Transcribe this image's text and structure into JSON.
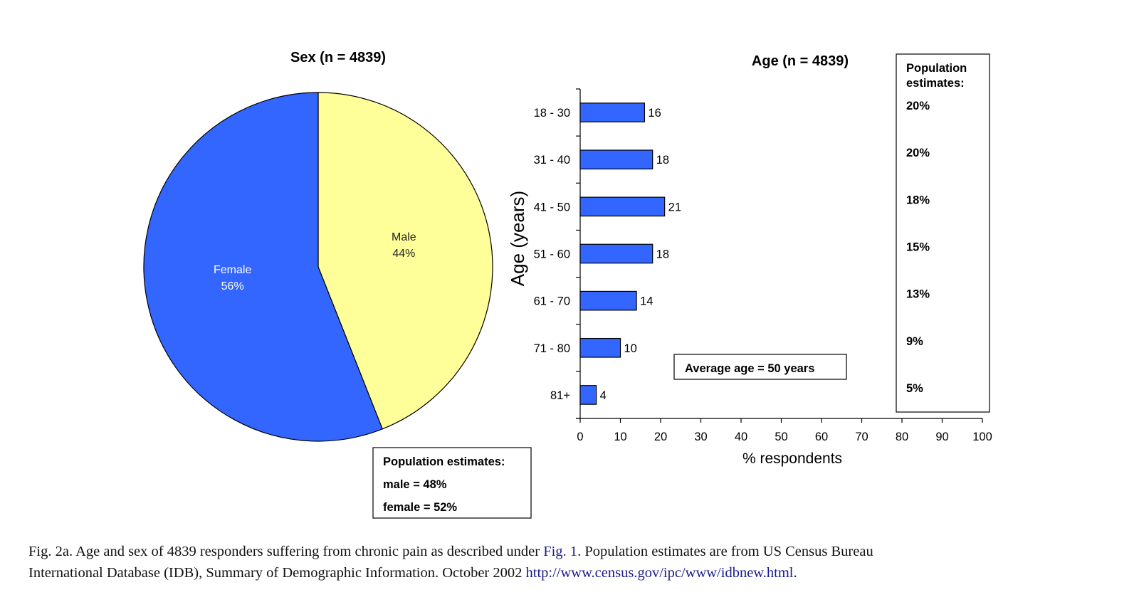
{
  "chart_data": [
    {
      "type": "pie",
      "title": "Sex (n = 4839)",
      "slices": [
        {
          "label": "Male",
          "value": 44,
          "pct_label": "44%",
          "color": "#FFFF99"
        },
        {
          "label": "Female",
          "value": 56,
          "pct_label": "56%",
          "color": "#3366FF"
        }
      ],
      "annotation": {
        "title": "Population estimates:",
        "lines": [
          "male = 48%",
          "female = 52%"
        ]
      }
    },
    {
      "type": "bar",
      "orientation": "horizontal",
      "title": "Age (n = 4839)",
      "categories": [
        "18 - 30",
        "31 - 40",
        "41 - 50",
        "51 - 60",
        "61 - 70",
        "71 - 80",
        "81+"
      ],
      "values": [
        16,
        18,
        21,
        18,
        14,
        10,
        4
      ],
      "value_labels": [
        "16",
        "18",
        "21",
        "18",
        "14",
        "10",
        "4"
      ],
      "bar_color": "#3366FF",
      "xlabel": "% respondents",
      "ylabel": "Age (years)",
      "xlim": [
        0,
        100
      ],
      "xticks": [
        "0",
        "10",
        "20",
        "30",
        "40",
        "50",
        "60",
        "70",
        "80",
        "90",
        "100"
      ],
      "grid": false,
      "annotation": "Average age = 50 years",
      "population_box": {
        "title_line1": "Population",
        "title_line2": "estimates:",
        "values": [
          "20%",
          "20%",
          "18%",
          "15%",
          "13%",
          "9%",
          "5%"
        ]
      }
    }
  ],
  "caption": {
    "line1_a": "Fig. 2a.  Age and sex of 4839 responders suffering from chronic pain as described under ",
    "line1_link": "Fig. 1",
    "line1_b": ". Population estimates are from US Census Bureau",
    "line2_a": "International Database (IDB), Summary of Demographic Information. October 2002 ",
    "line2_link": "http://www.census.gov/ipc/www/idbnew.html",
    "line2_b": "."
  }
}
